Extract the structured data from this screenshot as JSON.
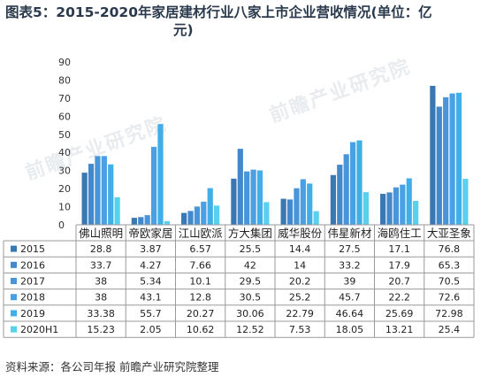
{
  "chart_data": {
    "type": "bar",
    "title_line1": "图表5：2015-2020年家居建材行业八家上市企业营收情况(单位：亿",
    "title_line2": "元)",
    "source": "资料来源：各公司年报 前瞻产业研究院整理",
    "watermark": "前瞻产业研究院",
    "ylim": [
      0,
      90
    ],
    "yticks": [
      "0",
      "10",
      "20",
      "30",
      "40",
      "50",
      "60",
      "70",
      "80",
      "90"
    ],
    "grid": false,
    "legend": "table-rows-left",
    "categories": [
      "佛山照明",
      "帝欧家居",
      "江山欧派",
      "方大集团",
      "威华股份",
      "伟星新材",
      "海鸥住工",
      "大亚圣象"
    ],
    "series": [
      {
        "name": "2015",
        "color": "#3a78b4",
        "values": [
          28.8,
          3.87,
          6.57,
          25.5,
          14.4,
          27.5,
          17.1,
          76.8
        ],
        "labels": [
          "28.8",
          "3.87",
          "6.57",
          "25.5",
          "14.4",
          "27.5",
          "17.1",
          "76.8"
        ]
      },
      {
        "name": "2016",
        "color": "#4188cc",
        "values": [
          33.7,
          4.27,
          7.66,
          42,
          14,
          33.2,
          17.9,
          65.3
        ],
        "labels": [
          "33.7",
          "4.27",
          "7.66",
          "42",
          "14",
          "33.2",
          "17.9",
          "65.3"
        ]
      },
      {
        "name": "2017",
        "color": "#4896d9",
        "values": [
          38,
          5.34,
          10.1,
          29.5,
          20.2,
          39,
          20.7,
          70.5
        ],
        "labels": [
          "38",
          "5.34",
          "10.1",
          "29.5",
          "20.2",
          "39",
          "20.7",
          "70.5"
        ]
      },
      {
        "name": "2018",
        "color": "#4aa0e4",
        "values": [
          38,
          43.1,
          12.8,
          30.5,
          25.2,
          45.7,
          22.2,
          72.6
        ],
        "labels": [
          "38",
          "43.1",
          "12.8",
          "30.5",
          "25.2",
          "45.7",
          "22.2",
          "72.6"
        ]
      },
      {
        "name": "2019",
        "color": "#42aee8",
        "values": [
          33.38,
          55.7,
          20.27,
          30.06,
          22.79,
          46.64,
          25.69,
          72.98
        ],
        "labels": [
          "33.38",
          "55.7",
          "20.27",
          "30.06",
          "22.79",
          "46.64",
          "25.69",
          "72.98"
        ]
      },
      {
        "name": "2020H1",
        "color": "#58d0ee",
        "values": [
          15.23,
          2.05,
          10.62,
          12.52,
          7.53,
          18.05,
          13.21,
          25.4
        ],
        "labels": [
          "15.23",
          "2.05",
          "10.62",
          "12.52",
          "7.53",
          "18.05",
          "13.21",
          "25.4"
        ]
      }
    ]
  }
}
